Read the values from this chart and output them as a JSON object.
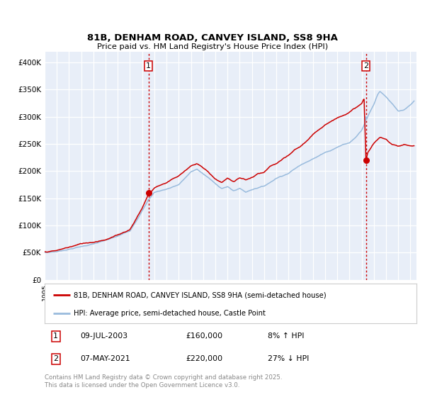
{
  "title": "81B, DENHAM ROAD, CANVEY ISLAND, SS8 9HA",
  "subtitle": "Price paid vs. HM Land Registry's House Price Index (HPI)",
  "legend_line1": "81B, DENHAM ROAD, CANVEY ISLAND, SS8 9HA (semi-detached house)",
  "legend_line2": "HPI: Average price, semi-detached house, Castle Point",
  "footer": "Contains HM Land Registry data © Crown copyright and database right 2025.\nThis data is licensed under the Open Government Licence v3.0.",
  "red_color": "#cc0000",
  "blue_color": "#99bbdd",
  "background_color": "#e8eef8",
  "marker1_x": 2003.52,
  "marker1_y": 160000,
  "marker2_x": 2021.35,
  "marker2_y": 220000,
  "vline1_x": 2003.52,
  "vline2_x": 2021.35,
  "ylim": [
    0,
    420000
  ],
  "xlim": [
    1995.0,
    2025.5
  ],
  "yticks": [
    0,
    50000,
    100000,
    150000,
    200000,
    250000,
    300000,
    350000,
    400000
  ]
}
